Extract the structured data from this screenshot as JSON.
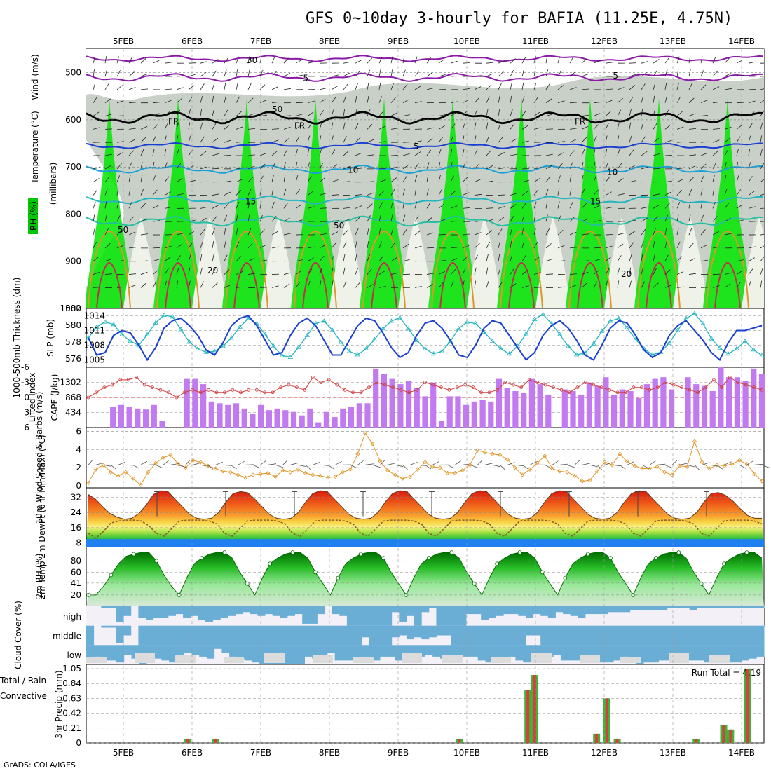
{
  "title": "GFS 0~10day 3-hourly for BAFIA (11.25E, 4.75N)",
  "footer": "GrADS: COLA/IGES",
  "dates": [
    "5FEB",
    "6FEB",
    "7FEB",
    "8FEB",
    "9FEB",
    "10FEB",
    "11FEB",
    "12FEB",
    "13FEB",
    "14FEB"
  ],
  "colors": {
    "rh_green": "#00e800",
    "rh_grey": "#b8c2b8",
    "slp": "#1a3fd0",
    "thickness": "#22b5c0",
    "lifted_index": "#d23a3a",
    "cape": "#c27af0",
    "wind10m": "#e0962a",
    "temp_hot": "#e03a1a",
    "dewpt": "#8a5a2a",
    "rh2m": "#28b428",
    "cloud": "#6aaed6",
    "precip_total": "#3ab43a",
    "precip_conv": "#e03a3a"
  },
  "chart_data": [
    {
      "type": "heatmap",
      "panel": "upper-air cross section",
      "ylabel_parts": [
        "Wind (m/s)",
        "Temperature (°C)",
        "(millibars)",
        "RH (%)"
      ],
      "yticks": [
        500,
        600,
        700,
        800,
        900,
        1000
      ],
      "ylim": [
        1000,
        450
      ],
      "contour_labels": [
        "-5",
        "5",
        "10",
        "15",
        "20",
        "FR",
        "30",
        "50"
      ],
      "isotherms_mb": {
        "minus5": 510,
        "fr": 595,
        "5": 655,
        "10": 705,
        "15": 770,
        "20": 815
      }
    },
    {
      "type": "line",
      "panel": "SLP / 1000-500mb thickness",
      "ylabel_left": "1000-500mb Thickness (dm)",
      "ylabel_right": "SLP (mb)",
      "yticks_left": [
        576,
        578,
        580,
        582
      ],
      "yticks_right": [
        1005,
        1008,
        1011,
        1014
      ],
      "series": [
        {
          "name": "SLP (mb)",
          "values": [
            1009.5,
            1006,
            1006.5,
            1010,
            1011,
            1010.5,
            1008,
            1005,
            1007.5,
            1011.5,
            1013,
            1013.5,
            1012,
            1010,
            1007,
            1006,
            1008.5,
            1012,
            1013.5,
            1014,
            1012,
            1009,
            1006,
            1006.5,
            1010,
            1012.5,
            1013.5,
            1012,
            1009,
            1006,
            1006,
            1009,
            1012,
            1013.5,
            1013,
            1010.5,
            1007.5,
            1005.5,
            1006.5,
            1010,
            1012.5,
            1013,
            1011.5,
            1009,
            1006,
            1005.5,
            1008,
            1011.5,
            1013,
            1012.5,
            1010,
            1007.5,
            1005,
            1006.5,
            1010,
            1012,
            1013,
            1011.5,
            1009,
            1006,
            1005,
            1008,
            1011.5,
            1013,
            1012.5,
            1010,
            1007,
            1005.5,
            1006.5,
            1010,
            1012,
            1013,
            1011,
            1009,
            1006.5,
            1005,
            1008.5,
            1011,
            1011,
            1011.5,
            1012
          ]
        },
        {
          "name": "1000-500mb Thickness (dm)",
          "values": [
            578.5,
            579.8,
            580.4,
            580.1,
            578.9,
            578.1,
            577.6,
            578.9,
            580.3,
            581.2,
            581,
            579.5,
            578,
            577.2,
            576.8,
            576.9,
            577.5,
            578.5,
            579.8,
            580.8,
            580.2,
            578.9,
            577.5,
            576.4,
            576.2,
            577.4,
            578.8,
            580.2,
            580.5,
            579.4,
            578,
            576.9,
            576.5,
            577.2,
            578.3,
            579.6,
            580.5,
            580.9,
            579.6,
            578.2,
            577.2,
            576.6,
            576.9,
            578.1,
            579.6,
            580.4,
            580.2,
            579.2,
            578.1,
            577.2,
            576.6,
            577.5,
            579,
            580.7,
            581.3,
            580.2,
            578.9,
            577.5,
            576.5,
            576.7,
            577.8,
            579.3,
            580.5,
            580.8,
            579.7,
            578.3,
            577.2,
            576.5,
            576.8,
            577.9,
            579.4,
            580.8,
            581.4,
            580.2,
            578.4,
            577.3,
            576.6,
            577.2,
            578.1,
            577.1,
            576.4
          ]
        }
      ]
    },
    {
      "type": "bar",
      "panel": "Lifted Index / CAPE",
      "ylabel_left": "Lifted Index",
      "ylabel_right": "CAPE (J/kg)",
      "yticks_left": [
        -6,
        -3,
        0,
        3,
        6
      ],
      "yticks_right": [
        434,
        868,
        1302
      ],
      "series": [
        {
          "name": "Lifted Index",
          "values": [
            0,
            -1,
            -2,
            -2.5,
            -3.5,
            -3.5,
            -4,
            -2.5,
            -2,
            -1.5,
            -1,
            0,
            -1,
            -1.5,
            -1,
            -1.5,
            -1,
            -1,
            -1.5,
            -1,
            -1.5,
            -1.5,
            -1,
            -1,
            -2,
            -2.5,
            -2,
            -1.5,
            -4,
            -3,
            -3.5,
            -2.5,
            -1.5,
            -1,
            -1,
            -2,
            -3,
            -2.5,
            -2,
            -1.5,
            -1,
            -1.5,
            -3,
            -2.5,
            -2,
            -1.5,
            -2,
            -2.5,
            -2,
            -1,
            -1,
            -1.5,
            -3,
            -2.5,
            -2,
            -3.5,
            -3,
            -2.5,
            -2,
            -1.5,
            -1,
            -2,
            -3,
            -2.5,
            -2,
            -1.5,
            -1,
            -1,
            -2,
            -2,
            -1.5,
            -2,
            -3,
            -2.5,
            -2,
            -1.5,
            -1,
            -2,
            -3.5,
            -2,
            -4,
            -3,
            -2.5,
            -2,
            -1.5
          ]
        },
        {
          "name": "CAPE (J/kg)",
          "values": [
            0,
            0,
            0,
            600,
            650,
            600,
            550,
            520,
            650,
            200,
            0,
            0,
            1400,
            1400,
            1250,
            750,
            700,
            650,
            700,
            550,
            400,
            650,
            500,
            550,
            500,
            450,
            350,
            550,
            150,
            450,
            300,
            550,
            600,
            700,
            700,
            1700,
            1550,
            1400,
            1250,
            1350,
            1150,
            900,
            1300,
            200,
            900,
            900,
            650,
            750,
            800,
            750,
            1400,
            1150,
            1050,
            1000,
            1400,
            1250,
            950,
            0,
            1100,
            1050,
            950,
            1300,
            1200,
            1450,
            950,
            1100,
            1050,
            850,
            1250,
            1400,
            1450,
            1100,
            0,
            1450,
            1250,
            1200,
            1050,
            1750,
            1450,
            1450,
            1350,
            1700,
            1550
          ]
        }
      ]
    },
    {
      "type": "line",
      "panel": "10m Wind",
      "ylabel": "10m Wind Speed & Barbs (m/s)",
      "yticks": [
        0,
        2,
        4,
        6
      ],
      "values": [
        0.3,
        1.8,
        2.3,
        1.5,
        1.1,
        1.5,
        0.8,
        0.1,
        1.5,
        2.5,
        3.1,
        3.4,
        2.4,
        2,
        2.8,
        2.6,
        2.2,
        1.9,
        1.6,
        1.5,
        1.2,
        0.9,
        1.2,
        1.3,
        1.4,
        1,
        1.7,
        1.5,
        1.8,
        1.4,
        1.2,
        1.1,
        0.9,
        1,
        1.5,
        1.8,
        3.5,
        5.8,
        4.6,
        2.7,
        1.7,
        1.2,
        0.8,
        1,
        1.8,
        2.6,
        2.1,
        2,
        1.4,
        1.4,
        1.7,
        2.3,
        3.9,
        3.7,
        3.5,
        3.4,
        2.9,
        2,
        1.2,
        1.8,
        2.5,
        3.3,
        1.9,
        1.6,
        1.5,
        1.1,
        0.5,
        0.6,
        1.6,
        2.6,
        2.3,
        3.5,
        2.7,
        2.2,
        1.9,
        1.9,
        2.1,
        1.5,
        1.2,
        2.2,
        2.1,
        4.9,
        2.6,
        1.9,
        2.3,
        2.2,
        2.4,
        2.8,
        2.4,
        1.3,
        0.5
      ]
    },
    {
      "type": "area",
      "panel": "2m Temp / DewPt",
      "ylabel": "2m Temp 2m DewPt (6hr Min/Max) (°C)",
      "yticks": [
        8,
        16,
        24,
        32
      ],
      "series": [
        {
          "name": "2m Temp",
          "values": [
            33.5,
            31,
            27,
            23.5,
            21.5,
            20.5,
            21,
            23.5,
            28,
            33.5,
            35.5,
            35,
            31,
            27,
            23,
            21,
            20.5,
            21,
            24,
            29.5,
            34,
            35,
            34.5,
            31,
            27,
            23,
            21,
            20.5,
            21,
            24,
            29.5,
            34,
            35.5,
            35,
            31,
            27,
            23,
            21,
            20.5,
            21,
            24,
            29.5,
            34,
            35.5,
            35,
            31,
            27,
            23,
            21,
            20.5,
            21,
            24,
            29.5,
            34,
            35.5,
            35,
            31,
            27,
            23,
            21,
            20.5,
            21,
            24,
            29.5,
            34,
            35.5,
            35,
            31,
            27,
            23,
            21,
            20.5,
            21,
            24,
            29.5,
            34,
            35.5,
            35,
            31,
            27,
            23,
            21,
            20.5,
            21,
            24,
            29.5,
            34,
            34.5,
            33,
            30,
            26,
            22.5,
            21,
            21
          ]
        },
        {
          "name": "2m DewPt",
          "values": [
            13,
            10.5,
            14,
            18.5,
            19.5,
            20,
            20,
            19.5,
            17,
            13,
            11.5,
            15.5,
            19.5,
            20,
            20,
            20,
            19.5,
            18,
            13,
            11.5,
            15.5,
            19.5,
            20,
            20,
            20,
            19.5,
            18,
            13,
            11.5,
            15.5,
            19.5,
            20,
            20,
            20,
            19.5,
            18,
            13,
            11.5,
            15.5,
            19.5,
            20,
            20,
            20,
            19.5,
            18,
            13,
            11.5,
            15.5,
            19.5,
            20,
            20,
            20,
            19.5,
            18,
            13,
            11.5,
            15.5,
            19.5,
            20,
            20,
            20,
            19.5,
            18,
            13,
            11.5,
            15.5,
            19.5,
            20,
            20,
            20,
            19.5,
            18,
            13,
            11.5,
            15.5,
            19.5,
            20,
            20,
            20,
            19.5,
            18,
            13,
            11.5,
            15.5,
            19.5,
            20,
            20,
            20,
            19.5,
            18
          ]
        }
      ]
    },
    {
      "type": "area",
      "panel": "2m RH",
      "ylabel": "2m RH (%)",
      "yticks": [
        20,
        41,
        60,
        80
      ],
      "values": [
        20,
        20,
        35,
        55,
        75,
        88,
        92,
        95,
        95,
        80,
        55,
        35,
        20,
        50,
        75,
        85,
        92,
        95,
        95,
        85,
        60,
        40,
        20,
        50,
        75,
        85,
        92,
        95,
        95,
        85,
        60,
        40,
        20,
        50,
        75,
        85,
        92,
        95,
        95,
        85,
        60,
        40,
        20,
        50,
        75,
        85,
        92,
        95,
        95,
        85,
        60,
        40,
        20,
        50,
        75,
        85,
        92,
        95,
        95,
        85,
        60,
        40,
        20,
        50,
        75,
        85,
        92,
        95,
        95,
        85,
        60,
        40,
        20,
        50,
        75,
        85,
        92,
        95,
        95,
        85,
        60,
        40,
        20,
        50,
        75,
        85,
        92,
        95,
        95,
        85
      ]
    },
    {
      "type": "heatmap",
      "panel": "Cloud Cover",
      "ylabel": "Cloud Cover (%)",
      "rows": [
        "high",
        "middle",
        "low"
      ],
      "high": [
        0,
        0,
        0.1,
        0.1,
        0.8,
        0.5,
        0,
        0.6,
        0.7,
        0.6,
        0.6,
        0.5,
        0.4,
        0.6,
        0.5,
        0.7,
        0.8,
        0.7,
        0.6,
        0.5,
        0.4,
        0.3,
        0.4,
        0.5,
        0.4,
        0.5,
        0.6,
        0.5,
        0.4,
        0.9,
        0.9,
        0.4,
        0,
        0.4,
        0.5,
        1,
        1,
        1,
        1,
        1,
        1,
        0.3,
        0.8,
        0.5,
        1,
        0.3,
        0.1,
        1,
        1,
        1,
        1,
        0.4,
        0.4,
        0.7,
        0.6,
        0.5,
        0.4,
        0.4,
        0.5,
        0.6,
        0.4,
        0.5,
        0.6,
        0.3,
        0.4,
        0.5,
        0.6,
        0.4,
        0.4,
        0.4,
        0.3,
        0.3,
        0.3,
        0.2,
        0.2,
        0.2,
        0.2,
        0.2,
        0.1,
        0.1,
        0.1,
        0.2,
        0.1,
        0.1,
        0.1,
        0.1,
        0.1,
        0.1,
        0.1,
        0.1,
        0.1
      ],
      "middle": [
        1,
        0,
        0.1,
        0.1,
        0.9,
        0.5,
        0,
        1,
        1,
        1,
        1,
        1,
        1,
        1,
        1,
        1,
        1,
        1,
        1,
        1,
        1,
        1,
        1,
        1,
        1,
        1,
        1,
        1,
        1,
        1,
        1,
        1,
        1,
        1,
        1,
        1,
        1,
        0.6,
        1,
        1,
        1,
        0.6,
        0.5,
        0.7,
        0.6,
        0.7,
        0.6,
        0.5,
        0.5,
        1,
        1,
        1,
        1,
        1,
        1,
        1,
        1,
        1,
        1,
        0.5,
        0.5,
        1,
        1,
        1,
        1,
        1,
        1,
        1,
        1,
        1,
        1,
        1,
        1,
        1,
        1,
        1,
        1,
        1,
        1,
        1,
        1,
        1,
        1,
        1,
        1,
        1,
        1,
        1,
        1,
        1,
        1
      ],
      "low": [
        0.7,
        0.6,
        0.8,
        0.8,
        0.9,
        0.5,
        0.7,
        1,
        0.8,
        0.7,
        0.8,
        0.9,
        0.7,
        0.4,
        0.5,
        0.6,
        0.7,
        0.2,
        0.4,
        0.6,
        0.7,
        0.8,
        0.9,
        1,
        1,
        1,
        1,
        1,
        1,
        0.6,
        0.7,
        0.6,
        0.4,
        0.8,
        0.8,
        0.8,
        0.8,
        0.8,
        0.8,
        0.6,
        0.6,
        0.8,
        0.8,
        0.6,
        0.6,
        0.5,
        0.6,
        0.7,
        0.8,
        0.8,
        0.6,
        0.6,
        0.8,
        0.9,
        0.8,
        0.7,
        0.6,
        0.8,
        0.9,
        0.9,
        0.8,
        0.6,
        0.5,
        0.8,
        0.8,
        0.8,
        0.7,
        0.8,
        0.9,
        0.9,
        0.8,
        0.6,
        0.9,
        1,
        0.9,
        0.9,
        0.8,
        0.8,
        0.7,
        0.7,
        0.8,
        0.8,
        0.9,
        0.9,
        0.9,
        0.9,
        0.9,
        0.8,
        0.7,
        0.6
      ]
    },
    {
      "type": "bar",
      "panel": "3hr Precip",
      "ylabel": "3hr Precip (mm)",
      "legend": [
        "Total / Rain",
        "Convective"
      ],
      "yticks": [
        0,
        0.21,
        0.42,
        0.63,
        0.84,
        1.05
      ],
      "ylim": [
        0,
        1.05
      ],
      "run_total": "Run Total = 4.19",
      "bars": [
        {
          "date_idx": 0.95,
          "value": 0.06
        },
        {
          "date_idx": 1.35,
          "value": 0.06
        },
        {
          "date_idx": 4.9,
          "value": 0.06
        },
        {
          "date_idx": 5.9,
          "value": 0.75
        },
        {
          "date_idx": 6.0,
          "value": 0.96
        },
        {
          "date_idx": 6.9,
          "value": 0.13
        },
        {
          "date_idx": 7.05,
          "value": 0.63
        },
        {
          "date_idx": 7.2,
          "value": 0.06
        },
        {
          "date_idx": 8.35,
          "value": 0.06
        },
        {
          "date_idx": 8.75,
          "value": 0.25
        },
        {
          "date_idx": 8.85,
          "value": 0.19
        },
        {
          "date_idx": 9.1,
          "value": 1.05
        }
      ]
    }
  ]
}
